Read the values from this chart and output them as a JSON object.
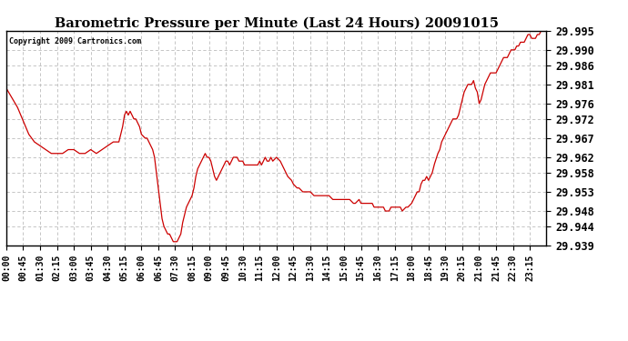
{
  "title": "Barometric Pressure per Minute (Last 24 Hours) 20091015",
  "copyright": "Copyright 2009 Cartronics.com",
  "line_color": "#cc0000",
  "bg_color": "#ffffff",
  "plot_bg_color": "#ffffff",
  "grid_color": "#bbbbbb",
  "ylim": [
    29.939,
    29.995
  ],
  "yticks": [
    29.939,
    29.944,
    29.948,
    29.953,
    29.958,
    29.962,
    29.967,
    29.972,
    29.976,
    29.981,
    29.986,
    29.99,
    29.995
  ],
  "xtick_labels": [
    "00:00",
    "00:45",
    "01:30",
    "02:15",
    "03:00",
    "03:45",
    "04:30",
    "05:15",
    "06:00",
    "06:45",
    "07:30",
    "08:15",
    "09:00",
    "09:45",
    "10:30",
    "11:15",
    "12:00",
    "12:45",
    "13:30",
    "14:15",
    "15:00",
    "15:45",
    "16:30",
    "17:15",
    "18:00",
    "18:45",
    "19:30",
    "20:15",
    "21:00",
    "21:45",
    "22:30",
    "23:15"
  ],
  "keypoints": [
    [
      0,
      29.98
    ],
    [
      30,
      29.975
    ],
    [
      60,
      29.968
    ],
    [
      75,
      29.966
    ],
    [
      90,
      29.965
    ],
    [
      105,
      29.964
    ],
    [
      120,
      29.963
    ],
    [
      135,
      29.963
    ],
    [
      150,
      29.963
    ],
    [
      165,
      29.964
    ],
    [
      180,
      29.964
    ],
    [
      195,
      29.963
    ],
    [
      210,
      29.963
    ],
    [
      225,
      29.964
    ],
    [
      240,
      29.963
    ],
    [
      255,
      29.964
    ],
    [
      270,
      29.965
    ],
    [
      285,
      29.966
    ],
    [
      300,
      29.966
    ],
    [
      310,
      29.97
    ],
    [
      315,
      29.973
    ],
    [
      320,
      29.974
    ],
    [
      325,
      29.973
    ],
    [
      330,
      29.974
    ],
    [
      335,
      29.973
    ],
    [
      340,
      29.972
    ],
    [
      345,
      29.972
    ],
    [
      355,
      29.97
    ],
    [
      360,
      29.968
    ],
    [
      370,
      29.967
    ],
    [
      375,
      29.967
    ],
    [
      385,
      29.965
    ],
    [
      390,
      29.964
    ],
    [
      395,
      29.962
    ],
    [
      400,
      29.958
    ],
    [
      405,
      29.954
    ],
    [
      410,
      29.95
    ],
    [
      415,
      29.946
    ],
    [
      420,
      29.944
    ],
    [
      425,
      29.943
    ],
    [
      430,
      29.942
    ],
    [
      435,
      29.942
    ],
    [
      440,
      29.941
    ],
    [
      445,
      29.94
    ],
    [
      450,
      29.94
    ],
    [
      455,
      29.94
    ],
    [
      460,
      29.941
    ],
    [
      465,
      29.942
    ],
    [
      470,
      29.945
    ],
    [
      475,
      29.947
    ],
    [
      480,
      29.949
    ],
    [
      490,
      29.951
    ],
    [
      495,
      29.952
    ],
    [
      500,
      29.954
    ],
    [
      505,
      29.957
    ],
    [
      510,
      29.959
    ],
    [
      515,
      29.96
    ],
    [
      520,
      29.961
    ],
    [
      525,
      29.962
    ],
    [
      530,
      29.963
    ],
    [
      535,
      29.962
    ],
    [
      540,
      29.962
    ],
    [
      545,
      29.961
    ],
    [
      550,
      29.959
    ],
    [
      555,
      29.957
    ],
    [
      560,
      29.956
    ],
    [
      565,
      29.957
    ],
    [
      570,
      29.958
    ],
    [
      575,
      29.959
    ],
    [
      580,
      29.96
    ],
    [
      585,
      29.961
    ],
    [
      590,
      29.961
    ],
    [
      595,
      29.96
    ],
    [
      600,
      29.961
    ],
    [
      605,
      29.962
    ],
    [
      615,
      29.962
    ],
    [
      620,
      29.961
    ],
    [
      630,
      29.961
    ],
    [
      635,
      29.96
    ],
    [
      645,
      29.96
    ],
    [
      660,
      29.96
    ],
    [
      670,
      29.96
    ],
    [
      675,
      29.961
    ],
    [
      680,
      29.96
    ],
    [
      690,
      29.962
    ],
    [
      695,
      29.961
    ],
    [
      700,
      29.961
    ],
    [
      705,
      29.962
    ],
    [
      710,
      29.961
    ],
    [
      720,
      29.962
    ],
    [
      730,
      29.961
    ],
    [
      735,
      29.96
    ],
    [
      745,
      29.958
    ],
    [
      750,
      29.957
    ],
    [
      760,
      29.956
    ],
    [
      765,
      29.955
    ],
    [
      775,
      29.954
    ],
    [
      780,
      29.954
    ],
    [
      790,
      29.953
    ],
    [
      795,
      29.953
    ],
    [
      805,
      29.953
    ],
    [
      810,
      29.953
    ],
    [
      820,
      29.952
    ],
    [
      825,
      29.952
    ],
    [
      830,
      29.952
    ],
    [
      840,
      29.952
    ],
    [
      845,
      29.952
    ],
    [
      855,
      29.952
    ],
    [
      860,
      29.952
    ],
    [
      870,
      29.951
    ],
    [
      875,
      29.951
    ],
    [
      885,
      29.951
    ],
    [
      890,
      29.951
    ],
    [
      900,
      29.951
    ],
    [
      910,
      29.951
    ],
    [
      915,
      29.951
    ],
    [
      925,
      29.95
    ],
    [
      930,
      29.95
    ],
    [
      940,
      29.951
    ],
    [
      945,
      29.95
    ],
    [
      955,
      29.95
    ],
    [
      960,
      29.95
    ],
    [
      970,
      29.95
    ],
    [
      975,
      29.95
    ],
    [
      980,
      29.949
    ],
    [
      990,
      29.949
    ],
    [
      995,
      29.949
    ],
    [
      1005,
      29.949
    ],
    [
      1010,
      29.948
    ],
    [
      1020,
      29.948
    ],
    [
      1025,
      29.949
    ],
    [
      1035,
      29.949
    ],
    [
      1040,
      29.949
    ],
    [
      1050,
      29.949
    ],
    [
      1055,
      29.948
    ],
    [
      1065,
      29.949
    ],
    [
      1070,
      29.949
    ],
    [
      1080,
      29.95
    ],
    [
      1085,
      29.951
    ],
    [
      1090,
      29.952
    ],
    [
      1095,
      29.953
    ],
    [
      1100,
      29.953
    ],
    [
      1105,
      29.955
    ],
    [
      1110,
      29.956
    ],
    [
      1115,
      29.956
    ],
    [
      1120,
      29.957
    ],
    [
      1125,
      29.956
    ],
    [
      1130,
      29.957
    ],
    [
      1135,
      29.958
    ],
    [
      1140,
      29.96
    ],
    [
      1150,
      29.963
    ],
    [
      1155,
      29.964
    ],
    [
      1160,
      29.966
    ],
    [
      1165,
      29.967
    ],
    [
      1170,
      29.968
    ],
    [
      1180,
      29.97
    ],
    [
      1185,
      29.971
    ],
    [
      1190,
      29.972
    ],
    [
      1195,
      29.972
    ],
    [
      1200,
      29.972
    ],
    [
      1205,
      29.973
    ],
    [
      1210,
      29.975
    ],
    [
      1215,
      29.977
    ],
    [
      1220,
      29.979
    ],
    [
      1225,
      29.98
    ],
    [
      1230,
      29.981
    ],
    [
      1235,
      29.981
    ],
    [
      1240,
      29.981
    ],
    [
      1245,
      29.982
    ],
    [
      1250,
      29.98
    ],
    [
      1255,
      29.979
    ],
    [
      1260,
      29.976
    ],
    [
      1265,
      29.977
    ],
    [
      1270,
      29.979
    ],
    [
      1275,
      29.981
    ],
    [
      1280,
      29.982
    ],
    [
      1285,
      29.983
    ],
    [
      1290,
      29.984
    ],
    [
      1295,
      29.984
    ],
    [
      1300,
      29.984
    ],
    [
      1305,
      29.984
    ],
    [
      1310,
      29.985
    ],
    [
      1315,
      29.986
    ],
    [
      1320,
      29.987
    ],
    [
      1325,
      29.988
    ],
    [
      1330,
      29.988
    ],
    [
      1335,
      29.988
    ],
    [
      1340,
      29.989
    ],
    [
      1345,
      29.99
    ],
    [
      1350,
      29.99
    ],
    [
      1355,
      29.99
    ],
    [
      1360,
      29.991
    ],
    [
      1365,
      29.991
    ],
    [
      1370,
      29.992
    ],
    [
      1375,
      29.992
    ],
    [
      1380,
      29.992
    ],
    [
      1385,
      29.993
    ],
    [
      1390,
      29.994
    ],
    [
      1395,
      29.994
    ],
    [
      1400,
      29.993
    ],
    [
      1405,
      29.993
    ],
    [
      1410,
      29.993
    ],
    [
      1415,
      29.994
    ],
    [
      1420,
      29.994
    ],
    [
      1425,
      29.995
    ],
    [
      1430,
      29.995
    ],
    [
      1435,
      29.995
    ],
    [
      1439,
      29.995
    ]
  ]
}
